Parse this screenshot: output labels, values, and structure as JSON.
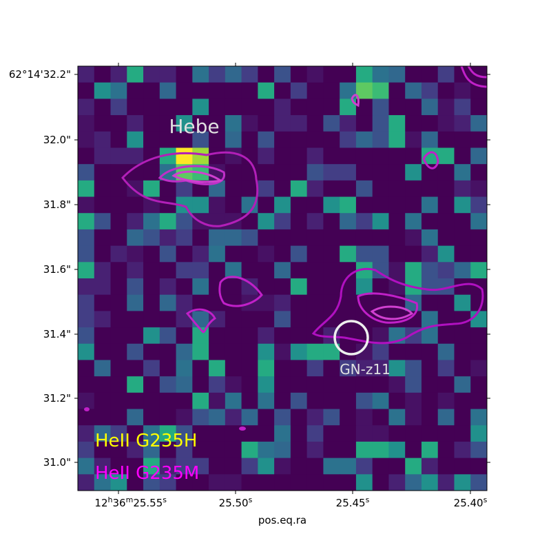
{
  "figure": {
    "x_axis_label": "pos.eq.ra",
    "x_ticks": [
      "12h36m25.55s",
      "25.50s",
      "25.45s",
      "25.40s"
    ],
    "y_ticks": [
      "62°14'32.2\"",
      "32.0\"",
      "31.8\"",
      "31.6\"",
      "31.4\"",
      "31.2\"",
      "31.0\""
    ],
    "annotations": {
      "source_1": "Hebe",
      "source_2": "GN-z11"
    },
    "legend": [
      {
        "label": "HeII G235H",
        "color": "#ffff00"
      },
      {
        "label": "HeII G235M",
        "color": "#ff00ff"
      }
    ]
  }
}
